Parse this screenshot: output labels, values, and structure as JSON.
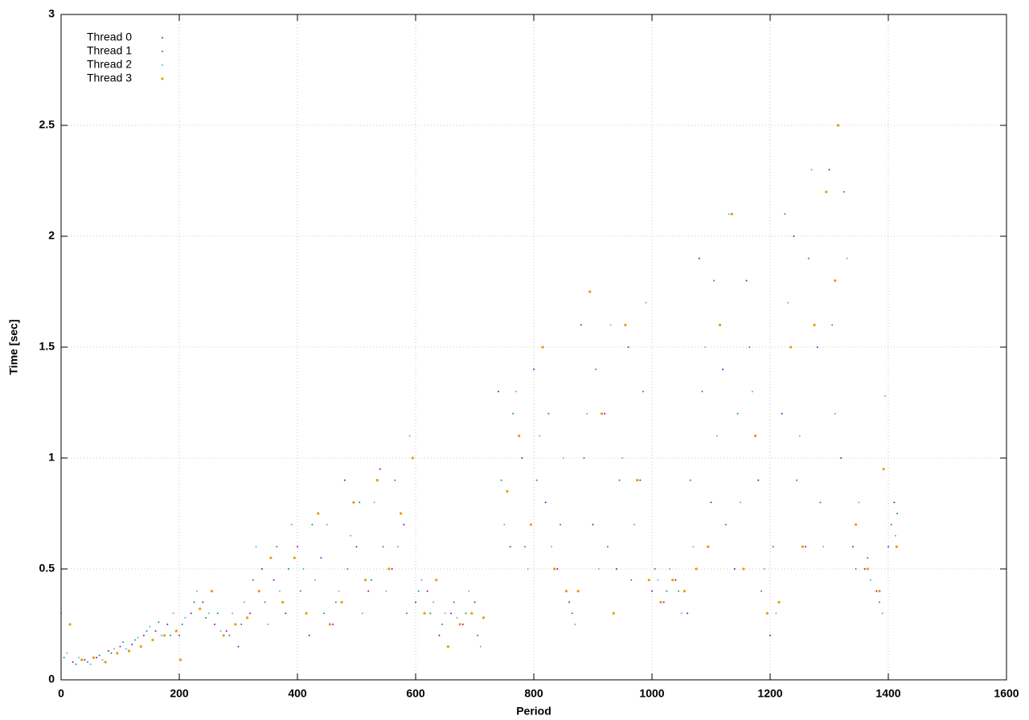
{
  "chart_data": {
    "type": "scatter",
    "x_label": "Period",
    "y_label": "Time [sec]",
    "xlim": [
      0,
      1600
    ],
    "ylim": [
      0,
      3
    ],
    "xticks": [
      0,
      200,
      400,
      600,
      800,
      1000,
      1200,
      1400,
      1600
    ],
    "yticks": [
      0,
      0.5,
      1,
      1.5,
      2,
      2.5,
      3
    ],
    "grid": true,
    "legend": "top-left",
    "series": [
      {
        "name": "Thread 0",
        "color": "#9400d3",
        "x": [
          0,
          20,
          40,
          60,
          80,
          100,
          120,
          140,
          160,
          180,
          200,
          220,
          240,
          260,
          280,
          300,
          320,
          340,
          360,
          380,
          400,
          420,
          440,
          460,
          480,
          500,
          520,
          540,
          560,
          580,
          600,
          620,
          640,
          660,
          680,
          700,
          740,
          760,
          780,
          800,
          820,
          840,
          860,
          880,
          900,
          920,
          940,
          960,
          980,
          1000,
          1020,
          1040,
          1060,
          1080,
          1100,
          1120,
          1140,
          1160,
          1180,
          1200,
          1220,
          1240,
          1260,
          1280,
          1300,
          1320,
          1340,
          1360,
          1380,
          1400,
          1410
        ],
        "values": [
          0.3,
          0.08,
          0.09,
          0.1,
          0.13,
          0.15,
          0.16,
          0.2,
          0.22,
          0.25,
          0.2,
          0.3,
          0.35,
          0.25,
          0.22,
          0.15,
          0.3,
          0.5,
          0.45,
          0.3,
          0.6,
          0.2,
          0.55,
          0.25,
          0.9,
          0.6,
          0.4,
          0.95,
          0.5,
          0.7,
          0.35,
          0.4,
          0.2,
          0.3,
          0.25,
          0.35,
          1.3,
          0.6,
          1.0,
          1.4,
          0.8,
          0.5,
          0.35,
          1.6,
          0.7,
          1.2,
          0.5,
          1.5,
          0.9,
          0.4,
          0.35,
          0.45,
          0.3,
          1.9,
          0.8,
          1.4,
          0.5,
          1.8,
          0.9,
          0.2,
          1.2,
          2.0,
          0.6,
          1.5,
          2.3,
          1.0,
          0.6,
          0.5,
          0.4,
          0.6,
          0.8
        ]
      },
      {
        "name": "Thread 1",
        "color": "#009e73",
        "x": [
          5,
          25,
          45,
          65,
          85,
          105,
          125,
          145,
          165,
          185,
          205,
          225,
          245,
          265,
          285,
          305,
          325,
          345,
          365,
          385,
          405,
          425,
          445,
          465,
          485,
          505,
          525,
          545,
          565,
          585,
          605,
          625,
          645,
          665,
          685,
          705,
          745,
          765,
          785,
          805,
          825,
          845,
          865,
          885,
          905,
          925,
          945,
          965,
          985,
          1005,
          1025,
          1045,
          1065,
          1085,
          1105,
          1125,
          1145,
          1165,
          1185,
          1205,
          1225,
          1245,
          1265,
          1285,
          1305,
          1325,
          1345,
          1365,
          1385,
          1405,
          1415
        ],
        "values": [
          0.1,
          0.07,
          0.08,
          0.11,
          0.12,
          0.17,
          0.18,
          0.22,
          0.26,
          0.2,
          0.25,
          0.35,
          0.28,
          0.3,
          0.2,
          0.25,
          0.45,
          0.35,
          0.6,
          0.5,
          0.4,
          0.7,
          0.3,
          0.35,
          0.5,
          0.8,
          0.45,
          0.6,
          0.9,
          0.3,
          0.4,
          0.3,
          0.25,
          0.35,
          0.3,
          0.2,
          0.9,
          1.2,
          0.6,
          0.9,
          1.2,
          0.7,
          0.3,
          1.0,
          1.4,
          0.6,
          0.9,
          0.45,
          1.3,
          0.5,
          0.4,
          0.4,
          0.9,
          1.3,
          1.8,
          0.7,
          1.2,
          1.5,
          0.4,
          0.6,
          2.1,
          0.9,
          1.9,
          0.8,
          1.6,
          2.2,
          0.5,
          0.55,
          0.35,
          0.7,
          0.75
        ]
      },
      {
        "name": "Thread 2",
        "color": "#56b4e9",
        "x": [
          10,
          30,
          50,
          70,
          90,
          110,
          130,
          150,
          170,
          190,
          210,
          230,
          250,
          270,
          290,
          310,
          330,
          350,
          370,
          390,
          410,
          430,
          450,
          470,
          490,
          510,
          530,
          550,
          570,
          590,
          610,
          630,
          650,
          670,
          690,
          710,
          750,
          770,
          790,
          810,
          830,
          850,
          870,
          890,
          910,
          930,
          950,
          970,
          990,
          1010,
          1030,
          1050,
          1070,
          1090,
          1110,
          1130,
          1150,
          1170,
          1190,
          1210,
          1230,
          1250,
          1270,
          1290,
          1310,
          1330,
          1350,
          1370,
          1390,
          1395,
          1412
        ],
        "values": [
          0.12,
          0.1,
          0.07,
          0.09,
          0.14,
          0.14,
          0.19,
          0.24,
          0.2,
          0.3,
          0.28,
          0.4,
          0.3,
          0.22,
          0.3,
          0.35,
          0.6,
          0.25,
          0.4,
          0.7,
          0.5,
          0.45,
          0.7,
          0.4,
          0.65,
          0.3,
          0.8,
          0.4,
          0.6,
          1.1,
          0.45,
          0.35,
          0.3,
          0.28,
          0.4,
          0.15,
          0.7,
          1.3,
          0.5,
          1.1,
          0.6,
          1.0,
          0.25,
          1.2,
          0.5,
          1.6,
          1.0,
          0.7,
          1.7,
          0.45,
          0.5,
          0.3,
          0.6,
          1.5,
          1.1,
          2.1,
          0.8,
          1.3,
          0.5,
          0.3,
          1.7,
          1.1,
          2.3,
          0.6,
          1.2,
          1.9,
          0.8,
          0.45,
          0.3,
          1.28,
          0.65
        ]
      },
      {
        "name": "Thread 3",
        "color": "#e69f00",
        "x": [
          15,
          35,
          55,
          75,
          95,
          115,
          135,
          155,
          175,
          195,
          202,
          235,
          255,
          275,
          295,
          315,
          335,
          355,
          375,
          395,
          415,
          435,
          455,
          475,
          495,
          515,
          535,
          555,
          575,
          595,
          615,
          635,
          655,
          675,
          695,
          715,
          755,
          775,
          795,
          815,
          835,
          855,
          875,
          895,
          915,
          935,
          955,
          975,
          995,
          1015,
          1035,
          1055,
          1075,
          1095,
          1115,
          1135,
          1155,
          1175,
          1195,
          1215,
          1235,
          1255,
          1275,
          1295,
          1310,
          1315,
          1345,
          1365,
          1385,
          1392,
          1414
        ],
        "values": [
          0.25,
          0.09,
          0.1,
          0.08,
          0.12,
          0.13,
          0.15,
          0.18,
          0.2,
          0.22,
          0.09,
          0.32,
          0.4,
          0.2,
          0.25,
          0.28,
          0.4,
          0.55,
          0.35,
          0.55,
          0.3,
          0.75,
          0.25,
          0.35,
          0.8,
          0.45,
          0.9,
          0.5,
          0.75,
          1.0,
          0.3,
          0.45,
          0.15,
          0.25,
          0.3,
          0.28,
          0.85,
          1.1,
          0.7,
          1.5,
          0.5,
          0.4,
          0.4,
          1.75,
          1.2,
          0.3,
          1.6,
          0.9,
          0.45,
          0.35,
          0.45,
          0.4,
          0.5,
          0.6,
          1.6,
          2.1,
          0.5,
          1.1,
          0.3,
          0.35,
          1.5,
          0.6,
          1.6,
          2.2,
          1.8,
          2.5,
          0.7,
          0.5,
          0.4,
          0.95,
          0.6
        ]
      }
    ]
  }
}
